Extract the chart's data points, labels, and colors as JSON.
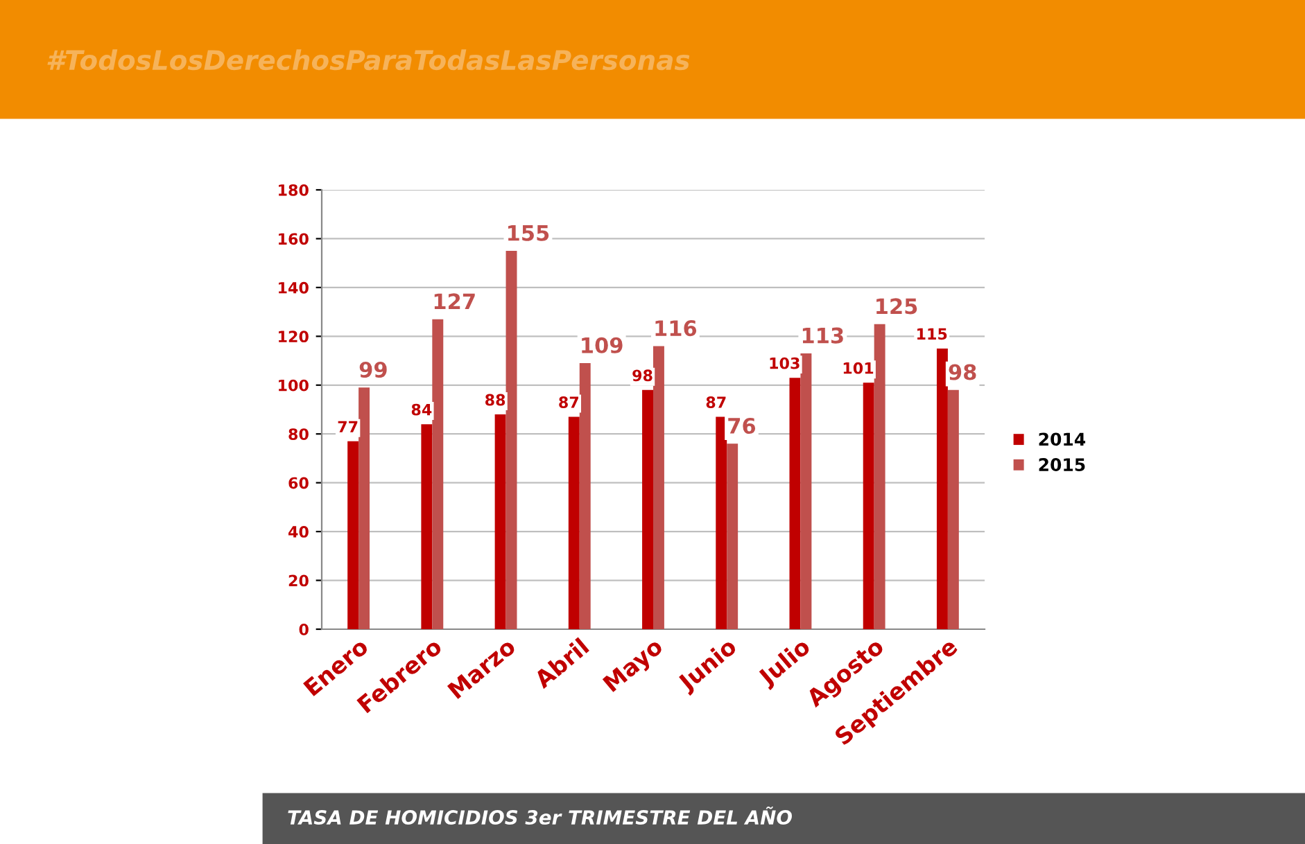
{
  "chart_data": {
    "type": "bar",
    "title": "TASA DE HOMICIDIOS 3er TRIMESTRE DEL AÑO",
    "categories": [
      "Enero",
      "Febrero",
      "Marzo",
      "Abril",
      "Mayo",
      "Junio",
      "Julio",
      "Agosto",
      "Septiembre"
    ],
    "series": [
      {
        "name": "2014",
        "color": "#c00000",
        "values": [
          77,
          84,
          88,
          87,
          98,
          87,
          103,
          101,
          115
        ]
      },
      {
        "name": "2015",
        "color": "#c0504d",
        "values": [
          99,
          127,
          155,
          109,
          116,
          76,
          113,
          125,
          98
        ]
      }
    ],
    "ylim": [
      0,
      180
    ],
    "yticks": [
      0,
      20,
      40,
      60,
      80,
      100,
      120,
      140,
      160,
      180
    ],
    "grid": "y",
    "legend": "right",
    "data_labels": true,
    "annotations": [
      "#TodosLosDerechosParaTodasLasPersonas"
    ]
  }
}
